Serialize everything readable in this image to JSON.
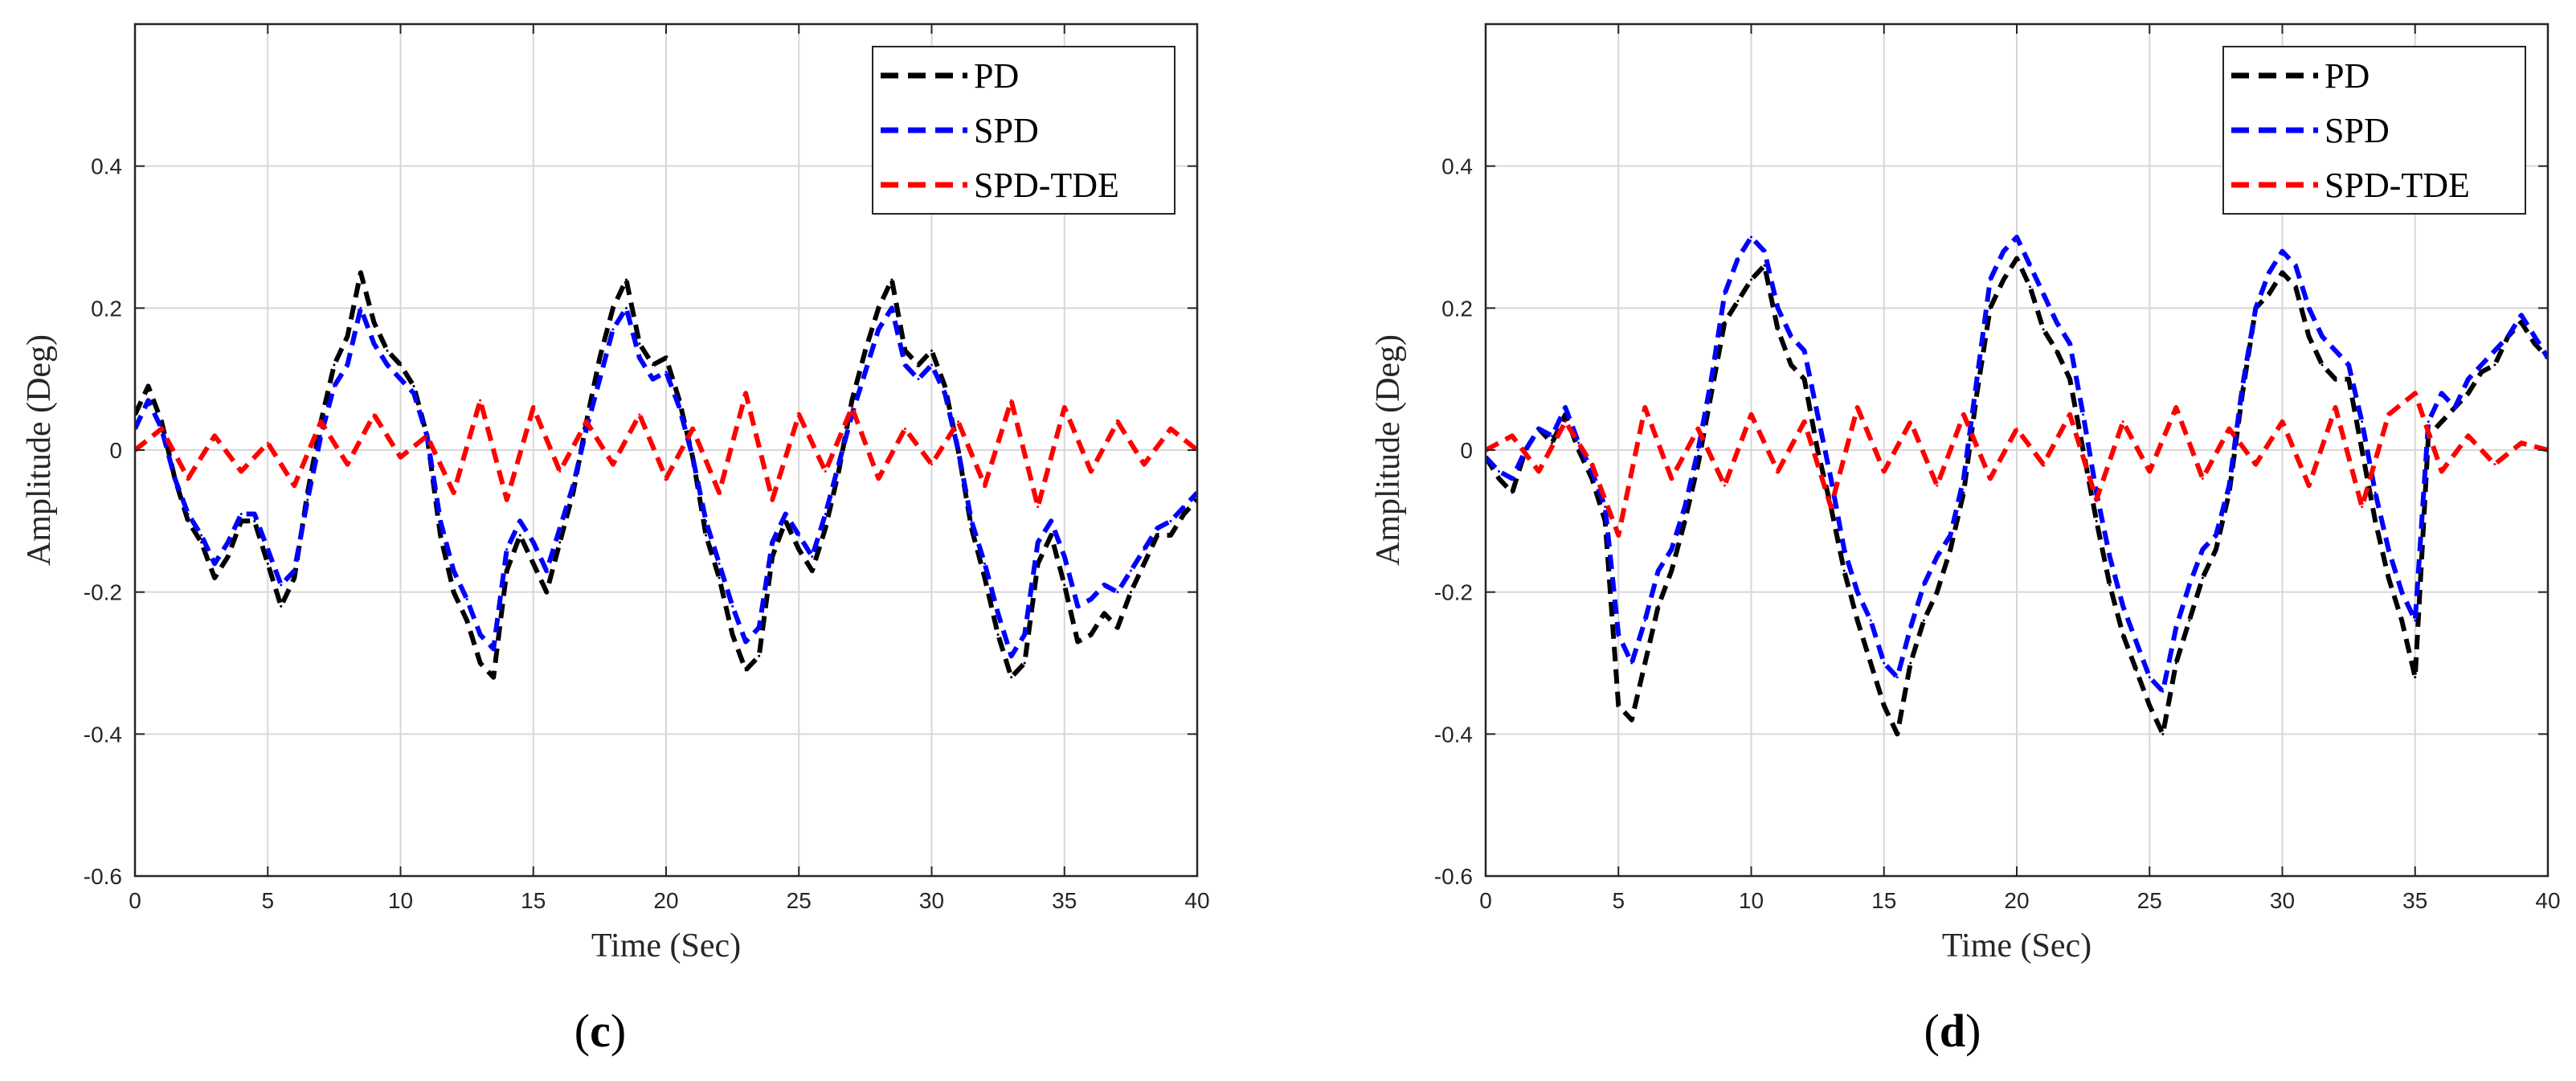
{
  "chart_data": [
    {
      "type": "line",
      "panel": "c",
      "caption_open": "(",
      "caption_letter": "c",
      "caption_close": ")",
      "xlabel": "Time (Sec)",
      "ylabel": "Amplitude (Deg)",
      "xlim": [
        0,
        40
      ],
      "ylim": [
        -0.6,
        0.6
      ],
      "xticks": [
        "0",
        "5",
        "10",
        "15",
        "20",
        "25",
        "30",
        "35",
        "40"
      ],
      "yticks": [
        "-0.6",
        "-0.4",
        "-0.2",
        "0",
        "0.2",
        "0.4"
      ],
      "ytick_values": [
        -0.6,
        -0.4,
        -0.2,
        0,
        0.2,
        0.4
      ],
      "grid": true,
      "legend_position": "top-right",
      "series": [
        {
          "name": "PD",
          "color": "#000000",
          "x": [
            0,
            0.5,
            1,
            1.5,
            2,
            2.5,
            3,
            3.5,
            4,
            4.5,
            5,
            5.5,
            6,
            6.5,
            7,
            7.5,
            8,
            8.5,
            9,
            9.5,
            10,
            10.5,
            11,
            11.5,
            12,
            12.5,
            13,
            13.5,
            14,
            14.5,
            15,
            15.5,
            16,
            16.5,
            17,
            17.5,
            18,
            18.5,
            19,
            19.5,
            20,
            20.5,
            21,
            21.5,
            22,
            22.5,
            23,
            23.5,
            24,
            24.5,
            25,
            25.5,
            26,
            26.5,
            27,
            27.5,
            28,
            28.5,
            29,
            29.5,
            30,
            30.5,
            31,
            31.5,
            32,
            32.5,
            33,
            33.5,
            34,
            34.5,
            35,
            35.5,
            36,
            36.5,
            37,
            37.5,
            38,
            38.5,
            39,
            39.5,
            40
          ],
          "values": [
            0.05,
            0.09,
            0.04,
            -0.04,
            -0.1,
            -0.13,
            -0.18,
            -0.15,
            -0.1,
            -0.1,
            -0.16,
            -0.22,
            -0.18,
            -0.06,
            0.04,
            0.12,
            0.16,
            0.25,
            0.18,
            0.14,
            0.12,
            0.09,
            0.02,
            -0.12,
            -0.2,
            -0.24,
            -0.3,
            -0.32,
            -0.17,
            -0.12,
            -0.16,
            -0.2,
            -0.13,
            -0.06,
            0.04,
            0.13,
            0.2,
            0.24,
            0.15,
            0.12,
            0.13,
            0.07,
            -0.01,
            -0.12,
            -0.18,
            -0.26,
            -0.31,
            -0.29,
            -0.15,
            -0.1,
            -0.14,
            -0.17,
            -0.11,
            -0.03,
            0.07,
            0.14,
            0.2,
            0.24,
            0.14,
            0.12,
            0.14,
            0.09,
            0.0,
            -0.11,
            -0.18,
            -0.26,
            -0.32,
            -0.3,
            -0.16,
            -0.12,
            -0.19,
            -0.27,
            -0.26,
            -0.23,
            -0.25,
            -0.2,
            -0.16,
            -0.12,
            -0.12,
            -0.09,
            -0.07
          ]
        },
        {
          "name": "SPD",
          "color": "#0000ff",
          "x": [
            0,
            0.5,
            1,
            1.5,
            2,
            2.5,
            3,
            3.5,
            4,
            4.5,
            5,
            5.5,
            6,
            6.5,
            7,
            7.5,
            8,
            8.5,
            9,
            9.5,
            10,
            10.5,
            11,
            11.5,
            12,
            12.5,
            13,
            13.5,
            14,
            14.5,
            15,
            15.5,
            16,
            16.5,
            17,
            17.5,
            18,
            18.5,
            19,
            19.5,
            20,
            20.5,
            21,
            21.5,
            22,
            22.5,
            23,
            23.5,
            24,
            24.5,
            25,
            25.5,
            26,
            26.5,
            27,
            27.5,
            28,
            28.5,
            29,
            29.5,
            30,
            30.5,
            31,
            31.5,
            32,
            32.5,
            33,
            33.5,
            34,
            34.5,
            35,
            35.5,
            36,
            36.5,
            37,
            37.5,
            38,
            38.5,
            39,
            39.5,
            40
          ],
          "values": [
            0.03,
            0.07,
            0.03,
            -0.04,
            -0.09,
            -0.12,
            -0.16,
            -0.13,
            -0.09,
            -0.09,
            -0.14,
            -0.19,
            -0.17,
            -0.07,
            0.02,
            0.09,
            0.12,
            0.2,
            0.15,
            0.12,
            0.1,
            0.08,
            0.02,
            -0.1,
            -0.17,
            -0.21,
            -0.26,
            -0.28,
            -0.14,
            -0.1,
            -0.13,
            -0.17,
            -0.11,
            -0.05,
            0.03,
            0.1,
            0.17,
            0.2,
            0.13,
            0.1,
            0.11,
            0.06,
            -0.01,
            -0.1,
            -0.16,
            -0.22,
            -0.27,
            -0.25,
            -0.13,
            -0.09,
            -0.12,
            -0.15,
            -0.09,
            -0.02,
            0.05,
            0.11,
            0.17,
            0.2,
            0.12,
            0.1,
            0.12,
            0.08,
            0.0,
            -0.1,
            -0.16,
            -0.23,
            -0.29,
            -0.26,
            -0.13,
            -0.1,
            -0.15,
            -0.22,
            -0.21,
            -0.19,
            -0.2,
            -0.17,
            -0.14,
            -0.11,
            -0.1,
            -0.08,
            -0.06
          ]
        },
        {
          "name": "SPD-TDE",
          "color": "#ff0000",
          "x": [
            0,
            1,
            2,
            3,
            4,
            5,
            6,
            7,
            8,
            9,
            10,
            11,
            12,
            13,
            14,
            15,
            16,
            17,
            18,
            19,
            20,
            21,
            22,
            23,
            24,
            25,
            26,
            27,
            28,
            29,
            30,
            31,
            32,
            33,
            34,
            35,
            36,
            37,
            38,
            39,
            40
          ],
          "values": [
            0.0,
            0.03,
            -0.04,
            0.02,
            -0.03,
            0.01,
            -0.05,
            0.04,
            -0.02,
            0.05,
            -0.01,
            0.02,
            -0.06,
            0.07,
            -0.07,
            0.06,
            -0.03,
            0.04,
            -0.02,
            0.05,
            -0.04,
            0.03,
            -0.06,
            0.08,
            -0.07,
            0.05,
            -0.03,
            0.06,
            -0.04,
            0.03,
            -0.02,
            0.04,
            -0.05,
            0.07,
            -0.08,
            0.06,
            -0.03,
            0.04,
            -0.02,
            0.03,
            0.0
          ]
        }
      ]
    },
    {
      "type": "line",
      "panel": "d",
      "caption_open": "(",
      "caption_letter": "d",
      "caption_close": ")",
      "xlabel": "Time (Sec)",
      "ylabel": "Amplitude (Deg)",
      "xlim": [
        0,
        40
      ],
      "ylim": [
        -0.6,
        0.6
      ],
      "xticks": [
        "0",
        "5",
        "10",
        "15",
        "20",
        "25",
        "30",
        "35",
        "40"
      ],
      "yticks": [
        "-0.6",
        "-0.4",
        "-0.2",
        "0",
        "0.2",
        "0.4"
      ],
      "ytick_values": [
        -0.6,
        -0.4,
        -0.2,
        0,
        0.2,
        0.4
      ],
      "grid": true,
      "legend_position": "top-right",
      "series": [
        {
          "name": "PD",
          "color": "#000000",
          "x": [
            0,
            0.5,
            1,
            1.5,
            2,
            2.5,
            3,
            3.5,
            4,
            4.5,
            5,
            5.5,
            6,
            6.5,
            7,
            7.5,
            8,
            8.5,
            9,
            9.5,
            10,
            10.5,
            11,
            11.5,
            12,
            12.5,
            13,
            13.5,
            14,
            14.5,
            15,
            15.5,
            16,
            16.5,
            17,
            17.5,
            18,
            18.5,
            19,
            19.5,
            20,
            20.5,
            21,
            21.5,
            22,
            22.5,
            23,
            23.5,
            24,
            24.5,
            25,
            25.5,
            26,
            26.5,
            27,
            27.5,
            28,
            28.5,
            29,
            29.5,
            30,
            30.5,
            31,
            31.5,
            32,
            32.5,
            33,
            33.5,
            34,
            34.5,
            35,
            35.5,
            36,
            36.5,
            37,
            37.5,
            38,
            38.5,
            39,
            39.5,
            40
          ],
          "values": [
            -0.01,
            -0.04,
            -0.06,
            0.0,
            0.03,
            0.01,
            0.05,
            0.0,
            -0.04,
            -0.1,
            -0.36,
            -0.38,
            -0.3,
            -0.22,
            -0.17,
            -0.1,
            -0.02,
            0.08,
            0.18,
            0.21,
            0.24,
            0.26,
            0.17,
            0.12,
            0.1,
            0.0,
            -0.08,
            -0.17,
            -0.24,
            -0.3,
            -0.36,
            -0.4,
            -0.3,
            -0.24,
            -0.2,
            -0.14,
            -0.06,
            0.08,
            0.2,
            0.24,
            0.27,
            0.23,
            0.17,
            0.14,
            0.1,
            0.0,
            -0.1,
            -0.19,
            -0.26,
            -0.31,
            -0.36,
            -0.4,
            -0.3,
            -0.24,
            -0.18,
            -0.14,
            -0.06,
            0.08,
            0.2,
            0.22,
            0.25,
            0.23,
            0.16,
            0.12,
            0.1,
            0.1,
            0.0,
            -0.1,
            -0.18,
            -0.24,
            -0.32,
            0.02,
            0.04,
            0.06,
            0.08,
            0.11,
            0.12,
            0.16,
            0.18,
            0.15,
            0.13
          ]
        },
        {
          "name": "SPD",
          "color": "#0000ff",
          "x": [
            0,
            0.5,
            1,
            1.5,
            2,
            2.5,
            3,
            3.5,
            4,
            4.5,
            5,
            5.5,
            6,
            6.5,
            7,
            7.5,
            8,
            8.5,
            9,
            9.5,
            10,
            10.5,
            11,
            11.5,
            12,
            12.5,
            13,
            13.5,
            14,
            14.5,
            15,
            15.5,
            16,
            16.5,
            17,
            17.5,
            18,
            18.5,
            19,
            19.5,
            20,
            20.5,
            21,
            21.5,
            22,
            22.5,
            23,
            23.5,
            24,
            24.5,
            25,
            25.5,
            26,
            26.5,
            27,
            27.5,
            28,
            28.5,
            29,
            29.5,
            30,
            30.5,
            31,
            31.5,
            32,
            32.5,
            33,
            33.5,
            34,
            34.5,
            35,
            35.5,
            36,
            36.5,
            37,
            37.5,
            38,
            38.5,
            39,
            39.5,
            40
          ],
          "values": [
            -0.01,
            -0.03,
            -0.04,
            0.0,
            0.03,
            0.02,
            0.06,
            0.01,
            -0.03,
            -0.08,
            -0.26,
            -0.3,
            -0.24,
            -0.17,
            -0.14,
            -0.08,
            0.0,
            0.1,
            0.22,
            0.27,
            0.3,
            0.28,
            0.2,
            0.16,
            0.14,
            0.05,
            -0.04,
            -0.14,
            -0.2,
            -0.24,
            -0.3,
            -0.32,
            -0.25,
            -0.19,
            -0.15,
            -0.12,
            -0.04,
            0.1,
            0.24,
            0.28,
            0.3,
            0.26,
            0.22,
            0.18,
            0.15,
            0.05,
            -0.06,
            -0.15,
            -0.22,
            -0.27,
            -0.32,
            -0.34,
            -0.25,
            -0.19,
            -0.14,
            -0.12,
            -0.05,
            0.09,
            0.2,
            0.25,
            0.28,
            0.26,
            0.2,
            0.16,
            0.14,
            0.12,
            0.04,
            -0.06,
            -0.14,
            -0.2,
            -0.24,
            0.04,
            0.08,
            0.06,
            0.1,
            0.12,
            0.14,
            0.16,
            0.19,
            0.16,
            0.13
          ]
        },
        {
          "name": "SPD-TDE",
          "color": "#ff0000",
          "x": [
            0,
            1,
            2,
            3,
            4,
            5,
            6,
            7,
            8,
            9,
            10,
            11,
            12,
            13,
            14,
            15,
            16,
            17,
            18,
            19,
            20,
            21,
            22,
            23,
            24,
            25,
            26,
            27,
            28,
            29,
            30,
            31,
            32,
            33,
            34,
            35,
            36,
            37,
            38,
            39,
            40
          ],
          "values": [
            0.0,
            0.02,
            -0.03,
            0.04,
            -0.02,
            -0.12,
            0.06,
            -0.04,
            0.03,
            -0.05,
            0.05,
            -0.03,
            0.04,
            -0.08,
            0.06,
            -0.03,
            0.04,
            -0.05,
            0.05,
            -0.04,
            0.03,
            -0.02,
            0.05,
            -0.07,
            0.04,
            -0.03,
            0.06,
            -0.04,
            0.03,
            -0.02,
            0.04,
            -0.05,
            0.06,
            -0.08,
            0.05,
            0.08,
            -0.03,
            0.02,
            -0.02,
            0.01,
            0.0
          ]
        }
      ]
    }
  ]
}
